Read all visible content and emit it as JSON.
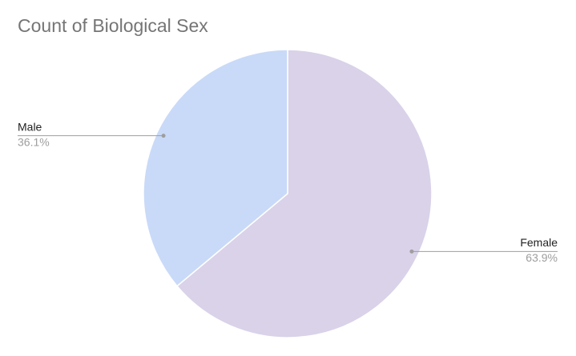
{
  "chart_data": {
    "type": "pie",
    "title": "Count of Biological Sex",
    "categories": [
      "Female",
      "Male"
    ],
    "values": [
      63.9,
      36.1
    ],
    "value_labels": [
      "63.9%",
      "36.1%"
    ],
    "colors": [
      "#d9d2e9",
      "#c9daf8"
    ]
  }
}
